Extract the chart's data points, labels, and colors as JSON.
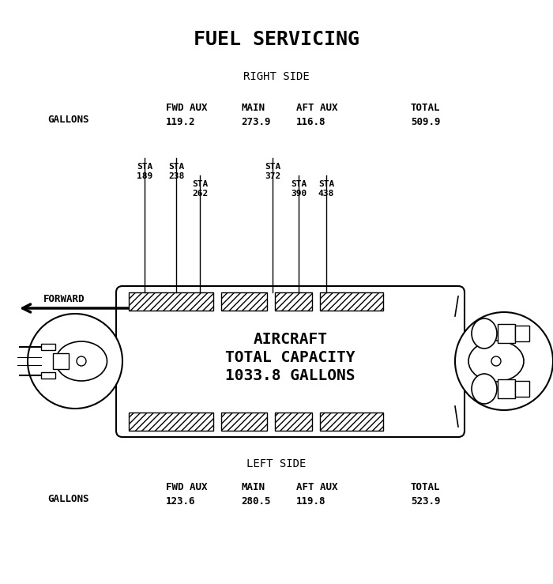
{
  "title": "FUEL SERVICING",
  "bg_color": "#ffffff",
  "title_fontsize": 18,
  "right_side_label": "RIGHT SIDE",
  "left_side_label": "LEFT SIDE",
  "right_gallons_label": "GALLONS",
  "left_gallons_label": "GALLONS",
  "right_fwd_aux_label": "FWD AUX",
  "right_fwd_aux_val": "119.2",
  "right_main_label": "MAIN",
  "right_main_val": "273.9",
  "right_aft_aux_label": "AFT AUX",
  "right_aft_aux_val": "116.8",
  "right_total_label": "TOTAL",
  "right_total_val": "509.9",
  "left_fwd_aux_label": "FWD AUX",
  "left_fwd_aux_val": "123.6",
  "left_main_label": "MAIN",
  "left_main_val": "280.5",
  "left_aft_aux_label": "AFT AUX",
  "left_aft_aux_val": "119.8",
  "left_total_label": "TOTAL",
  "left_total_val": "523.9",
  "aircraft_text_line1": "AIRCRAFT",
  "aircraft_text_line2": "TOTAL CAPACITY",
  "aircraft_text_line3": "1033.8 GALLONS",
  "forward_label": "FORWARD",
  "line_color": "#000000",
  "text_color": "#000000"
}
